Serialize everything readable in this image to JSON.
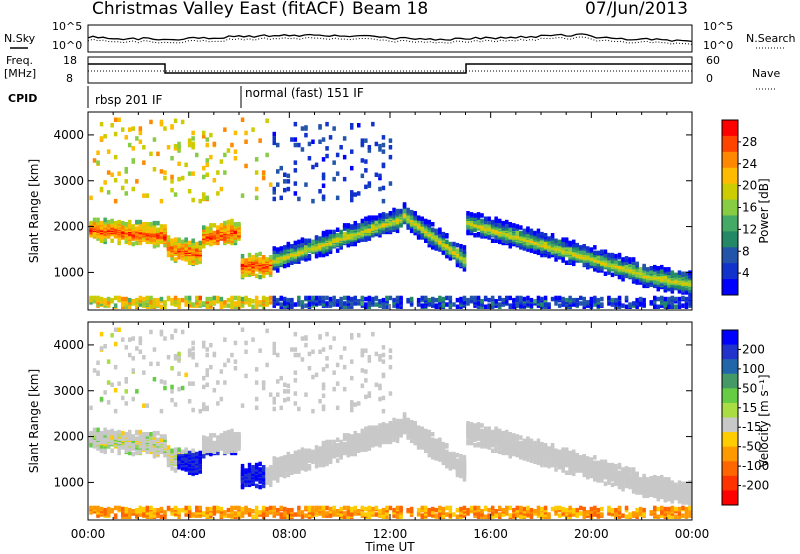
{
  "header": {
    "title": "Christmas Valley East (fitACF)",
    "beam": "Beam 18",
    "date": "07/Jun/2013"
  },
  "labels": {
    "nsky": "N.Sky",
    "nsearch": "N.Search",
    "freq": "Freq.",
    "freq_unit": "[MHz]",
    "nave": "Nave",
    "cpid": "CPID",
    "cpid_segments": [
      "rbsp 201 IF",
      "normal (fast) 151 IF"
    ],
    "noise_left_ticks": [
      "10^5",
      "10^0"
    ],
    "noise_right_ticks": [
      "10^5",
      "10^0"
    ],
    "freq_left_ticks": [
      "18",
      "8"
    ],
    "nave_right_ticks": [
      "60",
      "0"
    ]
  },
  "chart_data": [
    {
      "type": "heatmap",
      "name": "power-panel",
      "ylabel": "Slant Range [km]",
      "xlabel": "",
      "ylim": [
        180,
        4500
      ],
      "xlim": [
        0,
        24
      ],
      "yticks": [
        "1000",
        "2000",
        "3000",
        "4000"
      ],
      "colorbar": {
        "label": "Power [dB]",
        "ticks": [
          "28",
          "24",
          "20",
          "16",
          "12",
          "8",
          "4"
        ],
        "colors": [
          "#ff0000",
          "#ff4400",
          "#ff8800",
          "#ffbb00",
          "#cccc00",
          "#88cc44",
          "#44aa66",
          "#228866",
          "#2255aa",
          "#1133cc",
          "#0000ff"
        ]
      }
    },
    {
      "type": "heatmap",
      "name": "velocity-panel",
      "ylabel": "Slant Range [km]",
      "xlabel": "Time UT",
      "ylim": [
        180,
        4500
      ],
      "xlim": [
        0,
        24
      ],
      "yticks": [
        "1000",
        "2000",
        "3000",
        "4000"
      ],
      "xticks": [
        "00:00",
        "04:00",
        "08:00",
        "12:00",
        "16:00",
        "20:00",
        "00:00"
      ],
      "colorbar": {
        "label": "Velocity [m s⁻¹]",
        "ticks": [
          "200",
          "100",
          "50",
          "15",
          "-15",
          "-50",
          "-100",
          "-200"
        ],
        "colors": [
          "#0000ff",
          "#2233cc",
          "#2266aa",
          "#449966",
          "#66cc44",
          "#aadd44",
          "#c8c8c8",
          "#ffcc00",
          "#ff9900",
          "#ff6600",
          "#ff3300",
          "#ff0000"
        ]
      }
    }
  ]
}
